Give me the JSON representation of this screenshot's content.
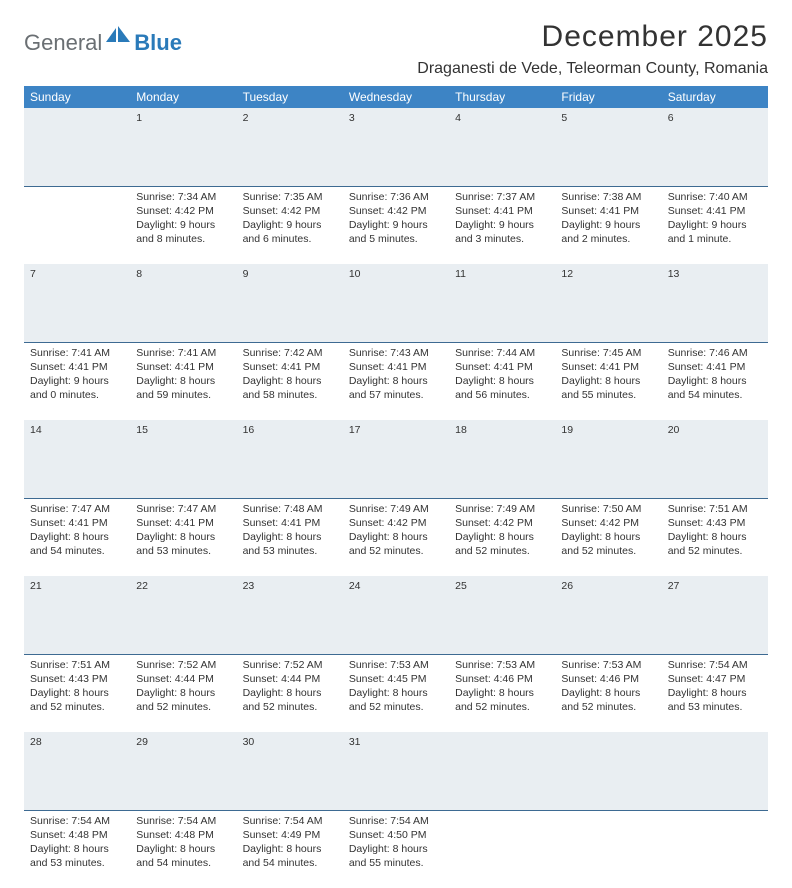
{
  "logo": {
    "text1": "General",
    "text2": "Blue"
  },
  "title": "December 2025",
  "location": "Draganesti de Vede, Teleorman County, Romania",
  "colors": {
    "header_bg": "#3d84c5",
    "header_text": "#ffffff",
    "daynum_bg": "#e9eef2",
    "daynum_text": "#5a6a78",
    "daynum_border": "#3d6a92",
    "body_text": "#333333",
    "logo_gray": "#6a6f73",
    "logo_blue": "#2a7ab9"
  },
  "day_headers": [
    "Sunday",
    "Monday",
    "Tuesday",
    "Wednesday",
    "Thursday",
    "Friday",
    "Saturday"
  ],
  "weeks": [
    {
      "nums": [
        "",
        "1",
        "2",
        "3",
        "4",
        "5",
        "6"
      ],
      "cells": [
        [],
        [
          "Sunrise: 7:34 AM",
          "Sunset: 4:42 PM",
          "Daylight: 9 hours",
          "and 8 minutes."
        ],
        [
          "Sunrise: 7:35 AM",
          "Sunset: 4:42 PM",
          "Daylight: 9 hours",
          "and 6 minutes."
        ],
        [
          "Sunrise: 7:36 AM",
          "Sunset: 4:42 PM",
          "Daylight: 9 hours",
          "and 5 minutes."
        ],
        [
          "Sunrise: 7:37 AM",
          "Sunset: 4:41 PM",
          "Daylight: 9 hours",
          "and 3 minutes."
        ],
        [
          "Sunrise: 7:38 AM",
          "Sunset: 4:41 PM",
          "Daylight: 9 hours",
          "and 2 minutes."
        ],
        [
          "Sunrise: 7:40 AM",
          "Sunset: 4:41 PM",
          "Daylight: 9 hours",
          "and 1 minute."
        ]
      ]
    },
    {
      "nums": [
        "7",
        "8",
        "9",
        "10",
        "11",
        "12",
        "13"
      ],
      "cells": [
        [
          "Sunrise: 7:41 AM",
          "Sunset: 4:41 PM",
          "Daylight: 9 hours",
          "and 0 minutes."
        ],
        [
          "Sunrise: 7:41 AM",
          "Sunset: 4:41 PM",
          "Daylight: 8 hours",
          "and 59 minutes."
        ],
        [
          "Sunrise: 7:42 AM",
          "Sunset: 4:41 PM",
          "Daylight: 8 hours",
          "and 58 minutes."
        ],
        [
          "Sunrise: 7:43 AM",
          "Sunset: 4:41 PM",
          "Daylight: 8 hours",
          "and 57 minutes."
        ],
        [
          "Sunrise: 7:44 AM",
          "Sunset: 4:41 PM",
          "Daylight: 8 hours",
          "and 56 minutes."
        ],
        [
          "Sunrise: 7:45 AM",
          "Sunset: 4:41 PM",
          "Daylight: 8 hours",
          "and 55 minutes."
        ],
        [
          "Sunrise: 7:46 AM",
          "Sunset: 4:41 PM",
          "Daylight: 8 hours",
          "and 54 minutes."
        ]
      ]
    },
    {
      "nums": [
        "14",
        "15",
        "16",
        "17",
        "18",
        "19",
        "20"
      ],
      "cells": [
        [
          "Sunrise: 7:47 AM",
          "Sunset: 4:41 PM",
          "Daylight: 8 hours",
          "and 54 minutes."
        ],
        [
          "Sunrise: 7:47 AM",
          "Sunset: 4:41 PM",
          "Daylight: 8 hours",
          "and 53 minutes."
        ],
        [
          "Sunrise: 7:48 AM",
          "Sunset: 4:41 PM",
          "Daylight: 8 hours",
          "and 53 minutes."
        ],
        [
          "Sunrise: 7:49 AM",
          "Sunset: 4:42 PM",
          "Daylight: 8 hours",
          "and 52 minutes."
        ],
        [
          "Sunrise: 7:49 AM",
          "Sunset: 4:42 PM",
          "Daylight: 8 hours",
          "and 52 minutes."
        ],
        [
          "Sunrise: 7:50 AM",
          "Sunset: 4:42 PM",
          "Daylight: 8 hours",
          "and 52 minutes."
        ],
        [
          "Sunrise: 7:51 AM",
          "Sunset: 4:43 PM",
          "Daylight: 8 hours",
          "and 52 minutes."
        ]
      ]
    },
    {
      "nums": [
        "21",
        "22",
        "23",
        "24",
        "25",
        "26",
        "27"
      ],
      "cells": [
        [
          "Sunrise: 7:51 AM",
          "Sunset: 4:43 PM",
          "Daylight: 8 hours",
          "and 52 minutes."
        ],
        [
          "Sunrise: 7:52 AM",
          "Sunset: 4:44 PM",
          "Daylight: 8 hours",
          "and 52 minutes."
        ],
        [
          "Sunrise: 7:52 AM",
          "Sunset: 4:44 PM",
          "Daylight: 8 hours",
          "and 52 minutes."
        ],
        [
          "Sunrise: 7:53 AM",
          "Sunset: 4:45 PM",
          "Daylight: 8 hours",
          "and 52 minutes."
        ],
        [
          "Sunrise: 7:53 AM",
          "Sunset: 4:46 PM",
          "Daylight: 8 hours",
          "and 52 minutes."
        ],
        [
          "Sunrise: 7:53 AM",
          "Sunset: 4:46 PM",
          "Daylight: 8 hours",
          "and 52 minutes."
        ],
        [
          "Sunrise: 7:54 AM",
          "Sunset: 4:47 PM",
          "Daylight: 8 hours",
          "and 53 minutes."
        ]
      ]
    },
    {
      "nums": [
        "28",
        "29",
        "30",
        "31",
        "",
        "",
        ""
      ],
      "cells": [
        [
          "Sunrise: 7:54 AM",
          "Sunset: 4:48 PM",
          "Daylight: 8 hours",
          "and 53 minutes."
        ],
        [
          "Sunrise: 7:54 AM",
          "Sunset: 4:48 PM",
          "Daylight: 8 hours",
          "and 54 minutes."
        ],
        [
          "Sunrise: 7:54 AM",
          "Sunset: 4:49 PM",
          "Daylight: 8 hours",
          "and 54 minutes."
        ],
        [
          "Sunrise: 7:54 AM",
          "Sunset: 4:50 PM",
          "Daylight: 8 hours",
          "and 55 minutes."
        ],
        [],
        [],
        []
      ]
    }
  ]
}
